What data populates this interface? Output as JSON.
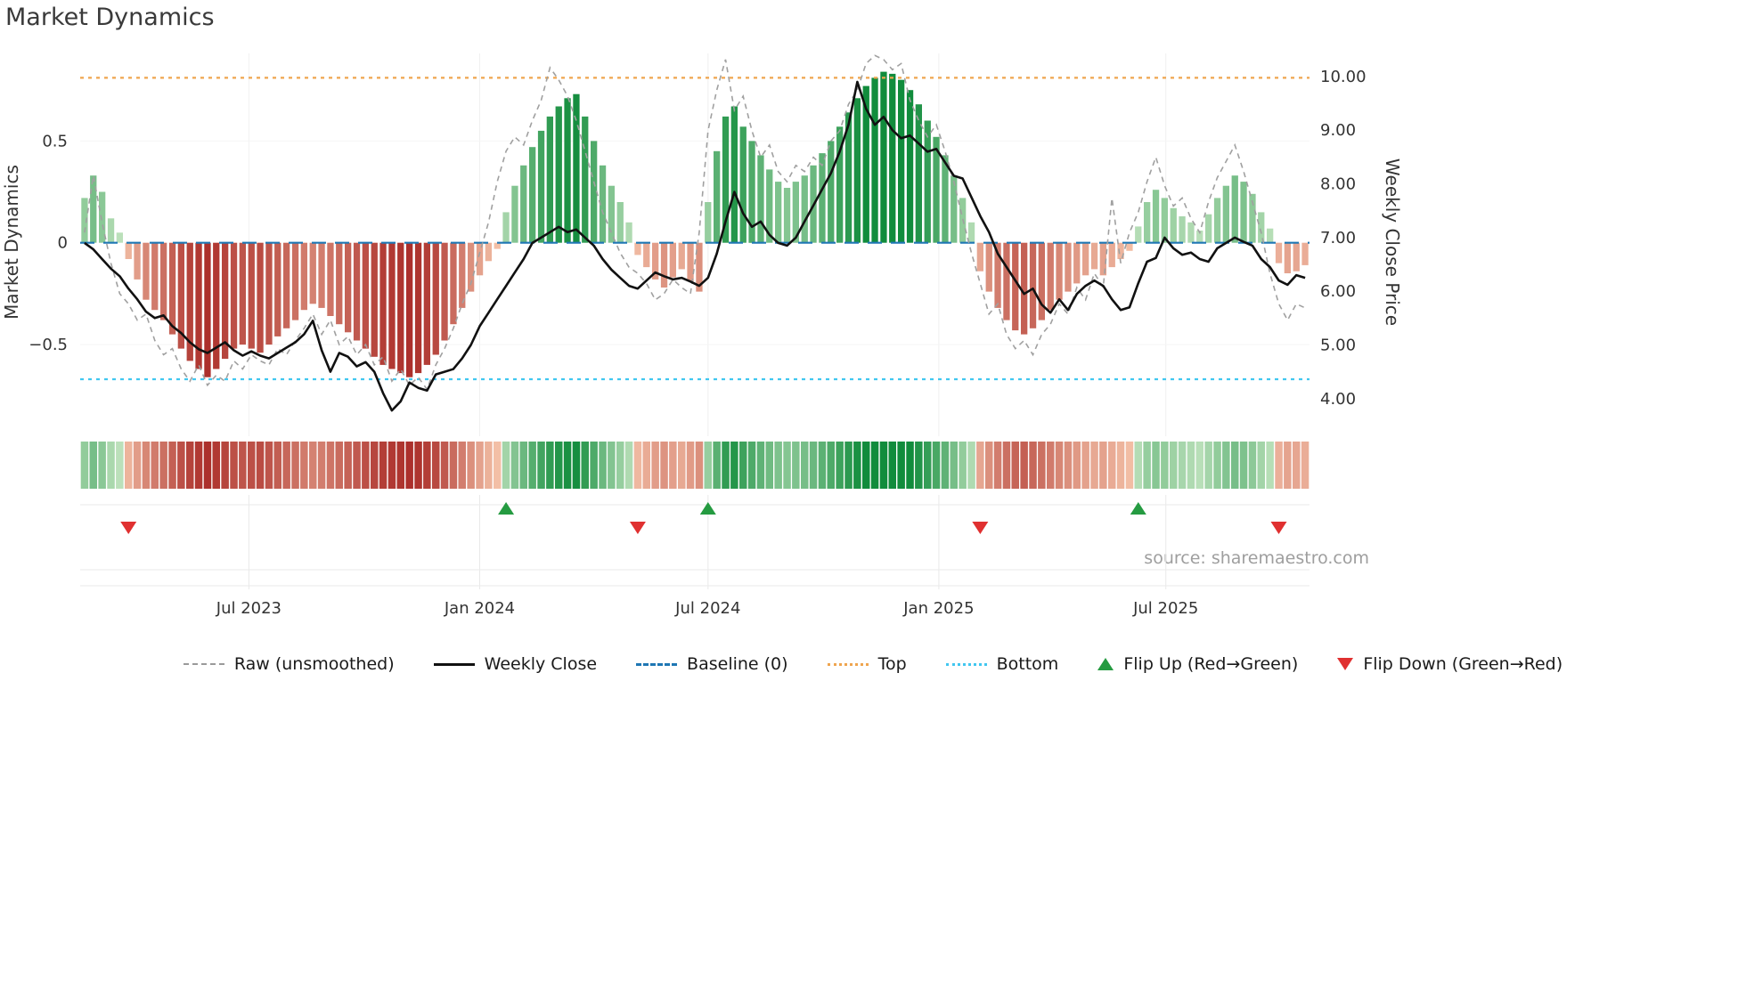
{
  "title": "Market Dynamics",
  "source_text": "source: sharemaestro.com",
  "colors": {
    "green_strong": "#118c3c",
    "green_weak": "#c7e6c3",
    "red_strong": "#a21c1a",
    "red_weak": "#f6c6ac",
    "baseline": "#1f77b4",
    "top_line": "#efa54f",
    "bottom_line": "#41c7f0",
    "raw_line": "#a0a0a0",
    "close_line": "#111111",
    "flip_up": "#259b41",
    "flip_down": "#e03030"
  },
  "chart_data": {
    "type": "combo",
    "title": "Market Dynamics",
    "left_axis": {
      "label": "Market Dynamics",
      "range": [
        -0.95,
        0.93
      ],
      "ticks": [
        {
          "value": 0.5,
          "label": "0.5"
        },
        {
          "value": 0.0,
          "label": "0"
        },
        {
          "value": -0.5,
          "label": "−0.5"
        }
      ]
    },
    "right_axis": {
      "label": "Weekly Close Price",
      "range": [
        3.3,
        10.43
      ],
      "ticks": [
        {
          "value": 10,
          "label": "10.00"
        },
        {
          "value": 9,
          "label": "9.00"
        },
        {
          "value": 8,
          "label": "8.00"
        },
        {
          "value": 7,
          "label": "7.00"
        },
        {
          "value": 6,
          "label": "6.00"
        },
        {
          "value": 5,
          "label": "5.00"
        },
        {
          "value": 4,
          "label": "4.00"
        }
      ]
    },
    "x_axis": {
      "start_date": "2023-02-20",
      "frequency": "weekly",
      "num_points": 140,
      "ticks": [
        {
          "week": 18.71,
          "label": "Jul 2023"
        },
        {
          "week": 45.0,
          "label": "Jan 2024"
        },
        {
          "week": 71.0,
          "label": "Jul 2024"
        },
        {
          "week": 97.29,
          "label": "Jan 2025"
        },
        {
          "week": 123.14,
          "label": "Jul 2025"
        }
      ]
    },
    "reference_lines": {
      "baseline": 0,
      "top": 0.81,
      "bottom": -0.67
    },
    "markers": {
      "flip_up_weeks": [
        48,
        71,
        120
      ],
      "flip_down_weeks": [
        5,
        63,
        102,
        136
      ]
    },
    "series": [
      {
        "name": "Market Dynamics (smoothed bars)",
        "type": "bar",
        "axis": "left",
        "values": [
          0.22,
          0.33,
          0.25,
          0.12,
          0.05,
          -0.08,
          -0.18,
          -0.28,
          -0.33,
          -0.38,
          -0.45,
          -0.52,
          -0.58,
          -0.62,
          -0.66,
          -0.62,
          -0.57,
          -0.52,
          -0.5,
          -0.52,
          -0.54,
          -0.5,
          -0.46,
          -0.42,
          -0.38,
          -0.33,
          -0.3,
          -0.32,
          -0.36,
          -0.4,
          -0.44,
          -0.48,
          -0.52,
          -0.56,
          -0.6,
          -0.62,
          -0.64,
          -0.66,
          -0.64,
          -0.6,
          -0.55,
          -0.48,
          -0.4,
          -0.32,
          -0.24,
          -0.16,
          -0.09,
          -0.03,
          0.15,
          0.28,
          0.38,
          0.47,
          0.55,
          0.62,
          0.67,
          0.71,
          0.73,
          0.62,
          0.5,
          0.38,
          0.28,
          0.2,
          0.1,
          -0.06,
          -0.12,
          -0.18,
          -0.22,
          -0.17,
          -0.13,
          -0.19,
          -0.24,
          0.2,
          0.45,
          0.62,
          0.67,
          0.57,
          0.5,
          0.43,
          0.36,
          0.3,
          0.27,
          0.3,
          0.33,
          0.38,
          0.44,
          0.5,
          0.57,
          0.64,
          0.71,
          0.77,
          0.81,
          0.84,
          0.83,
          0.8,
          0.75,
          0.68,
          0.6,
          0.52,
          0.43,
          0.33,
          0.22,
          0.1,
          -0.14,
          -0.24,
          -0.32,
          -0.38,
          -0.43,
          -0.45,
          -0.42,
          -0.38,
          -0.33,
          -0.28,
          -0.24,
          -0.2,
          -0.16,
          -0.13,
          -0.16,
          -0.12,
          -0.08,
          -0.04,
          0.08,
          0.2,
          0.26,
          0.22,
          0.17,
          0.13,
          0.1,
          0.06,
          0.14,
          0.22,
          0.28,
          0.33,
          0.3,
          0.24,
          0.15,
          0.07,
          -0.1,
          -0.15,
          -0.14,
          -0.11
        ]
      },
      {
        "name": "Raw (unsmoothed)",
        "type": "line",
        "axis": "left",
        "style": "dashed-gray",
        "values": [
          0.05,
          0.33,
          0.1,
          -0.1,
          -0.25,
          -0.3,
          -0.38,
          -0.35,
          -0.48,
          -0.55,
          -0.52,
          -0.62,
          -0.68,
          -0.6,
          -0.7,
          -0.65,
          -0.68,
          -0.58,
          -0.62,
          -0.55,
          -0.58,
          -0.6,
          -0.52,
          -0.55,
          -0.48,
          -0.42,
          -0.35,
          -0.45,
          -0.38,
          -0.5,
          -0.46,
          -0.55,
          -0.5,
          -0.6,
          -0.56,
          -0.68,
          -0.62,
          -0.7,
          -0.66,
          -0.72,
          -0.6,
          -0.52,
          -0.42,
          -0.3,
          -0.2,
          -0.05,
          0.1,
          0.3,
          0.45,
          0.52,
          0.48,
          0.6,
          0.7,
          0.86,
          0.8,
          0.72,
          0.6,
          0.45,
          0.3,
          0.15,
          0.05,
          -0.05,
          -0.12,
          -0.15,
          -0.2,
          -0.28,
          -0.25,
          -0.18,
          -0.22,
          -0.25,
          0.05,
          0.55,
          0.75,
          0.9,
          0.65,
          0.72,
          0.55,
          0.42,
          0.48,
          0.35,
          0.3,
          0.38,
          0.35,
          0.42,
          0.38,
          0.5,
          0.55,
          0.68,
          0.75,
          0.88,
          0.92,
          0.9,
          0.85,
          0.88,
          0.7,
          0.6,
          0.52,
          0.58,
          0.45,
          0.3,
          0.12,
          -0.05,
          -0.2,
          -0.35,
          -0.3,
          -0.45,
          -0.52,
          -0.48,
          -0.55,
          -0.45,
          -0.4,
          -0.3,
          -0.35,
          -0.22,
          -0.28,
          -0.15,
          -0.22,
          0.22,
          -0.1,
          0.05,
          0.15,
          0.3,
          0.42,
          0.28,
          0.18,
          0.22,
          0.12,
          0.05,
          0.2,
          0.32,
          0.4,
          0.48,
          0.35,
          0.2,
          0.05,
          -0.15,
          -0.3,
          -0.38,
          -0.3,
          -0.32
        ]
      },
      {
        "name": "Weekly Close",
        "type": "line",
        "axis": "right",
        "style": "solid-black",
        "values": [
          6.9,
          6.78,
          6.6,
          6.42,
          6.28,
          6.05,
          5.85,
          5.62,
          5.5,
          5.55,
          5.35,
          5.22,
          5.05,
          4.92,
          4.85,
          4.95,
          5.05,
          4.9,
          4.8,
          4.88,
          4.8,
          4.75,
          4.85,
          4.95,
          5.05,
          5.2,
          5.45,
          4.9,
          4.5,
          4.85,
          4.78,
          4.6,
          4.68,
          4.5,
          4.1,
          3.78,
          3.95,
          4.3,
          4.2,
          4.15,
          4.45,
          4.5,
          4.55,
          4.75,
          5.0,
          5.35,
          5.6,
          5.85,
          6.1,
          6.35,
          6.6,
          6.9,
          7.0,
          7.1,
          7.2,
          7.1,
          7.15,
          7.0,
          6.85,
          6.6,
          6.4,
          6.25,
          6.1,
          6.05,
          6.2,
          6.35,
          6.28,
          6.22,
          6.25,
          6.18,
          6.1,
          6.25,
          6.7,
          7.3,
          7.85,
          7.45,
          7.2,
          7.3,
          7.05,
          6.9,
          6.85,
          7.0,
          7.3,
          7.6,
          7.9,
          8.2,
          8.6,
          9.1,
          9.9,
          9.4,
          9.1,
          9.25,
          9.0,
          8.85,
          8.9,
          8.75,
          8.6,
          8.65,
          8.4,
          8.15,
          8.1,
          7.75,
          7.4,
          7.1,
          6.7,
          6.45,
          6.2,
          5.95,
          6.05,
          5.75,
          5.6,
          5.85,
          5.65,
          5.95,
          6.1,
          6.2,
          6.1,
          5.85,
          5.65,
          5.7,
          6.15,
          6.55,
          6.62,
          7.0,
          6.8,
          6.68,
          6.72,
          6.6,
          6.55,
          6.8,
          6.9,
          7.0,
          6.92,
          6.85,
          6.6,
          6.45,
          6.2,
          6.12,
          6.3,
          6.25
        ]
      }
    ],
    "heatmap": {
      "source": "bar_values",
      "position": "below-plot"
    },
    "legend": [
      {
        "label": "Raw (unsmoothed)",
        "swatch": "dashed-gray-line"
      },
      {
        "label": "Weekly Close",
        "swatch": "solid-black-line"
      },
      {
        "label": "Baseline (0)",
        "swatch": "dashed-blue-line"
      },
      {
        "label": "Top",
        "swatch": "dotted-orange-line"
      },
      {
        "label": "Bottom",
        "swatch": "dotted-cyan-line"
      },
      {
        "label": "Flip Up (Red→Green)",
        "swatch": "green-up-triangle"
      },
      {
        "label": "Flip Down (Green→Red)",
        "swatch": "red-down-triangle"
      }
    ]
  }
}
